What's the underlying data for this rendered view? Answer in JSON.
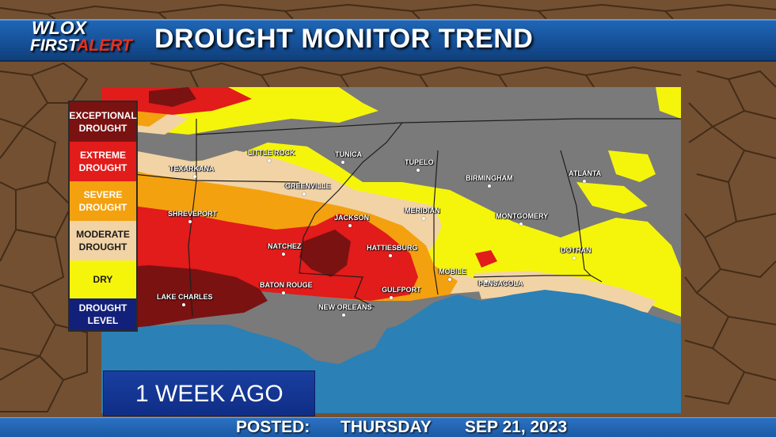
{
  "header": {
    "logo_top": "WLOX",
    "logo_first": "FIRST",
    "logo_alert": "ALERT",
    "title": "DROUGHT MONITOR TREND"
  },
  "legend": {
    "items": [
      {
        "label": "EXCEPTIONAL\nDROUGHT",
        "color": "#7a1212",
        "text_color": "#ffffff"
      },
      {
        "label": "EXTREME\nDROUGHT",
        "color": "#e21b1b",
        "text_color": "#ffffff"
      },
      {
        "label": "SEVERE\nDROUGHT",
        "color": "#f4a10f",
        "text_color": "#ffffff"
      },
      {
        "label": "MODERATE\nDROUGHT",
        "color": "#f2d3a6",
        "text_color": "#1a1a1a"
      },
      {
        "label": "DRY",
        "color": "#f5f50c",
        "text_color": "#1a1a1a"
      },
      {
        "label": "DROUGHT\nLEVEL",
        "color": "#12207a",
        "text_color": "#ffffff"
      }
    ]
  },
  "map": {
    "cities": [
      {
        "name": "TEXARKANA"
      },
      {
        "name": "LITTLE ROCK"
      },
      {
        "name": "TUNICA"
      },
      {
        "name": "TUPELO"
      },
      {
        "name": "BIRMINGHAM"
      },
      {
        "name": "ATLANTA"
      },
      {
        "name": "GREENVILLE"
      },
      {
        "name": "SHREVEPORT"
      },
      {
        "name": "JACKSON"
      },
      {
        "name": "MERIDIAN"
      },
      {
        "name": "MONTGOMERY"
      },
      {
        "name": "NATCHEZ"
      },
      {
        "name": "HATTIESBURG"
      },
      {
        "name": "DOTHAN"
      },
      {
        "name": "MOBILE"
      },
      {
        "name": "BATON ROUGE"
      },
      {
        "name": "PENSACOLA"
      },
      {
        "name": "LAKE CHARLES"
      },
      {
        "name": "GULFPORT"
      },
      {
        "name": "NEW ORLEANS"
      }
    ]
  },
  "timeframe": {
    "label": "1 WEEK AGO"
  },
  "footer": {
    "posted_label": "POSTED:",
    "day": "THURSDAY",
    "date": "SEP 21, 2023"
  }
}
